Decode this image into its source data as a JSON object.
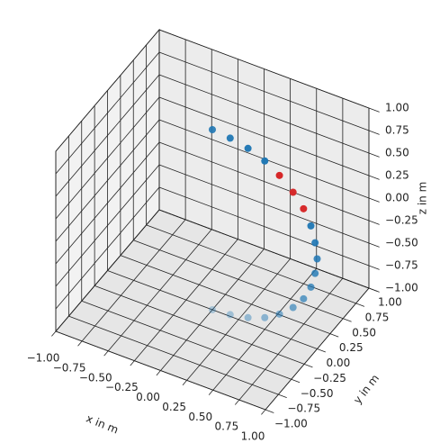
{
  "chart_data": {
    "type": "scatter3d",
    "x": [
      0,
      0.17,
      0.34,
      0.5,
      0.64,
      0.77,
      0.87,
      0.94,
      0.98,
      1,
      0.98,
      0.94,
      0.87,
      0.77,
      0.64,
      0.5,
      0.34,
      0.17,
      0
    ],
    "y": [
      0,
      0,
      0,
      0,
      0,
      0,
      0,
      0,
      0,
      0,
      0,
      0,
      0,
      0,
      0,
      0,
      0,
      0,
      0
    ],
    "z": [
      1,
      0.98,
      0.94,
      0.87,
      0.77,
      0.64,
      0.5,
      0.34,
      0.17,
      0,
      -0.17,
      -0.34,
      -0.5,
      -0.64,
      -0.77,
      -0.87,
      -0.94,
      -0.98,
      -1
    ],
    "colors": [
      "#1f77b4",
      "#1f77b4",
      "#1f77b4",
      "#1f77b4",
      "#d62728",
      "#d62728",
      "#d62728",
      "#1f77b4",
      "#1f77b4",
      "#1f77b4",
      "#1f77b4",
      "#1f77b4",
      "#1f77b4",
      "#1f77b4",
      "#1f77b4",
      "#1f77b4",
      "#1f77b4",
      "#1f77b4",
      "#1f77b4"
    ],
    "xlabel": "x in m",
    "ylabel": "y in m",
    "zlabel": "z in m",
    "xlim": [
      -1,
      1
    ],
    "ylim": [
      -1,
      1
    ],
    "zlim": [
      -1,
      1
    ],
    "xticks": [
      {
        "value": -1,
        "label": "−1.00"
      },
      {
        "value": -0.75,
        "label": "−0.75"
      },
      {
        "value": -0.5,
        "label": "−0.50"
      },
      {
        "value": -0.25,
        "label": "−0.25"
      },
      {
        "value": 0,
        "label": "0.00"
      },
      {
        "value": 0.25,
        "label": "0.25"
      },
      {
        "value": 0.5,
        "label": "0.50"
      },
      {
        "value": 0.75,
        "label": "0.75"
      },
      {
        "value": 1,
        "label": "1.00"
      }
    ],
    "yticks": [
      {
        "value": -1,
        "label": "−1.00"
      },
      {
        "value": -0.75,
        "label": "−0.75"
      },
      {
        "value": -0.5,
        "label": "−0.50"
      },
      {
        "value": -0.25,
        "label": "−0.25"
      },
      {
        "value": 0,
        "label": "0.00"
      },
      {
        "value": 0.25,
        "label": "0.25"
      },
      {
        "value": 0.5,
        "label": "0.50"
      },
      {
        "value": 0.75,
        "label": "0.75"
      },
      {
        "value": 1,
        "label": "1.00"
      }
    ],
    "zticks": [
      {
        "value": -1,
        "label": "−1.00"
      },
      {
        "value": -0.75,
        "label": "−0.75"
      },
      {
        "value": -0.5,
        "label": "−0.50"
      },
      {
        "value": -0.25,
        "label": "−0.25"
      },
      {
        "value": 0,
        "label": "0.00"
      },
      {
        "value": 0.25,
        "label": "0.25"
      },
      {
        "value": 0.5,
        "label": "0.50"
      },
      {
        "value": 0.75,
        "label": "0.75"
      },
      {
        "value": 1,
        "label": "1.00"
      }
    ],
    "grid": true
  }
}
